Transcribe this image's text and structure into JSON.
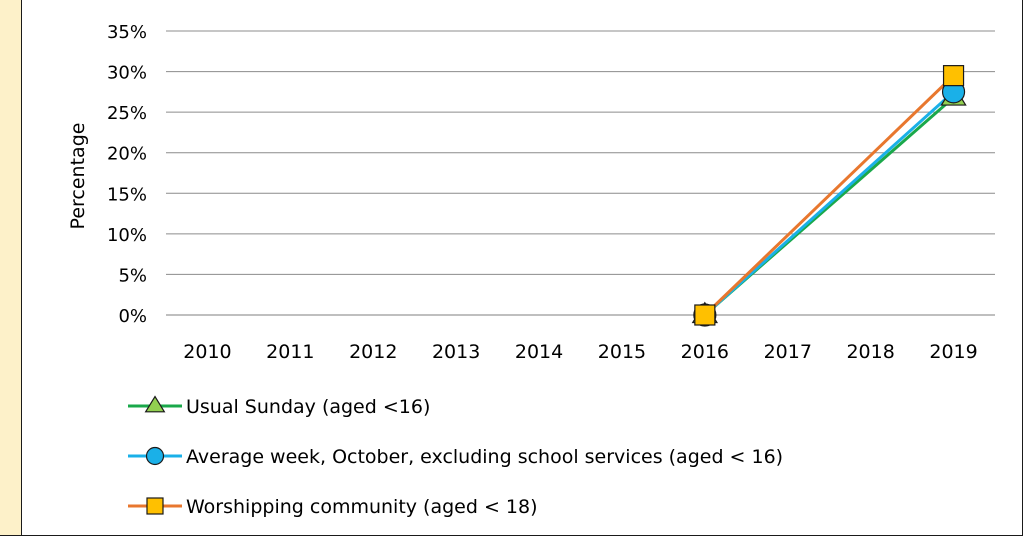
{
  "chart_data": {
    "type": "line",
    "title": "",
    "xlabel": "",
    "ylabel": "Percentage",
    "x": [
      "2010",
      "2011",
      "2012",
      "2013",
      "2014",
      "2015",
      "2016",
      "2017",
      "2018",
      "2019"
    ],
    "ylim": [
      0,
      35
    ],
    "y_ticks": [
      "0%",
      "5%",
      "10%",
      "15%",
      "20%",
      "25%",
      "30%",
      "35%"
    ],
    "grid": true,
    "legend_position": "bottom",
    "series": [
      {
        "name": "Usual Sunday (aged <16)",
        "marker": "triangle",
        "color": "#1aa84a",
        "marker_fill": "#92d050",
        "points": [
          {
            "x": "2016",
            "y": 0
          },
          {
            "x": "2019",
            "y": 26.8
          }
        ]
      },
      {
        "name": "Average week, October, excluding school services (aged < 16)",
        "marker": "circle",
        "color": "#1ab0e8",
        "marker_fill": "#1ab0e8",
        "points": [
          {
            "x": "2016",
            "y": 0
          },
          {
            "x": "2019",
            "y": 27.5
          }
        ]
      },
      {
        "name": "Worshipping community (aged < 18)",
        "marker": "square",
        "color": "#e8772e",
        "marker_fill": "#ffc000",
        "points": [
          {
            "x": "2016",
            "y": 0
          },
          {
            "x": "2019",
            "y": 29.5
          }
        ]
      }
    ]
  }
}
